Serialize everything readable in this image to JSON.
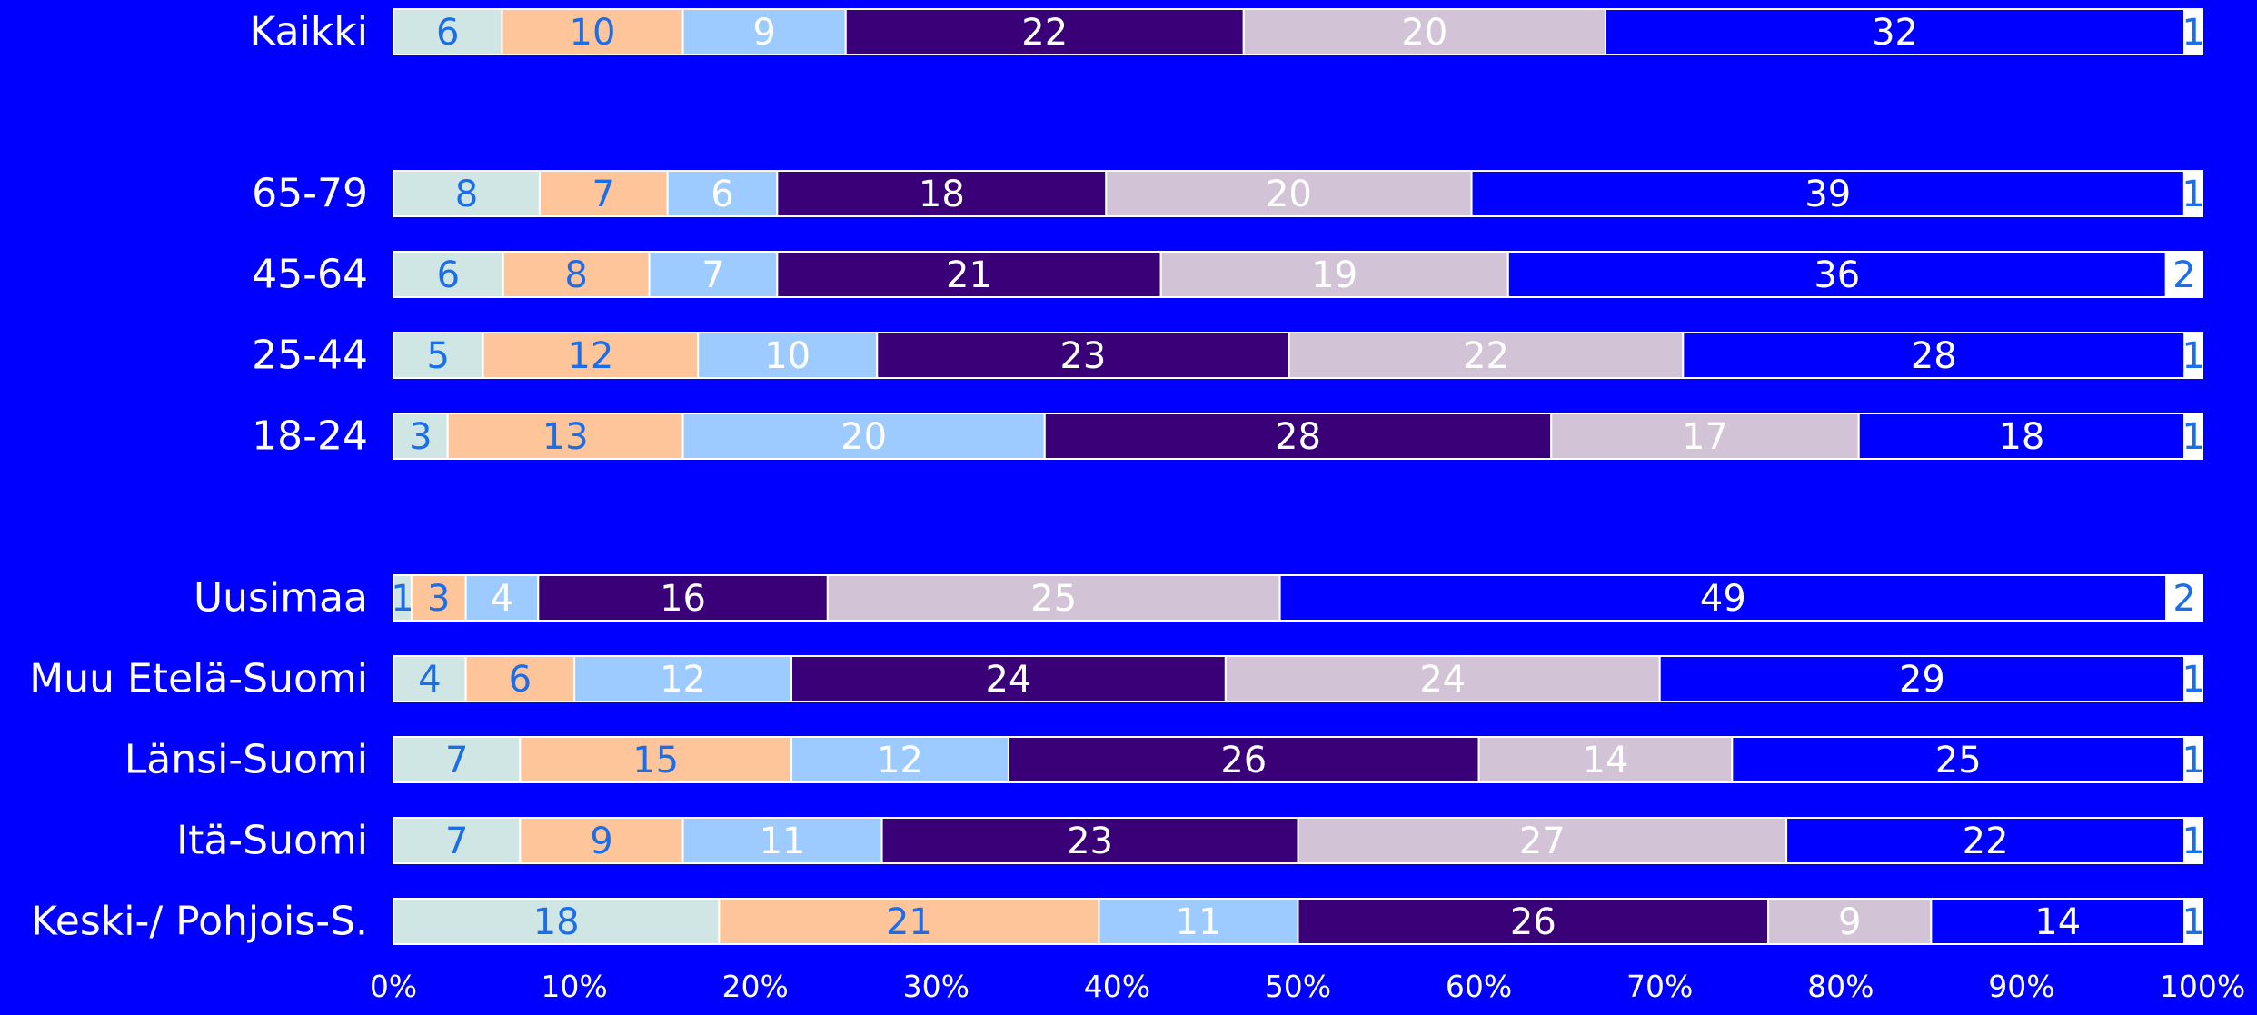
{
  "chart_data": {
    "type": "bar",
    "orientation": "horizontal",
    "stacked": true,
    "percent_stacked": true,
    "categories": [
      "Kaikki",
      "65-79",
      "45-64",
      "25-44",
      "18-24",
      "Uusimaa",
      "Muu Etelä-Suomi",
      "Länsi-Suomi",
      "Itä-Suomi",
      "Keski-/ Pohjois-S."
    ],
    "series": [
      {
        "values": [
          6,
          8,
          6,
          5,
          3,
          1,
          4,
          7,
          7,
          18
        ],
        "color": "#cfe6e4",
        "label_color": "#1c6ee8"
      },
      {
        "values": [
          10,
          7,
          8,
          12,
          13,
          3,
          6,
          15,
          9,
          21
        ],
        "color": "#ffc59a",
        "label_color": "#1c6ee8"
      },
      {
        "values": [
          9,
          6,
          7,
          10,
          20,
          4,
          12,
          12,
          11,
          11
        ],
        "color": "#9ecbff",
        "label_color": "#ffffff"
      },
      {
        "values": [
          22,
          18,
          21,
          23,
          28,
          16,
          24,
          26,
          23,
          26
        ],
        "color": "#3a0078",
        "label_color": "#ffffff"
      },
      {
        "values": [
          20,
          20,
          19,
          22,
          17,
          25,
          24,
          14,
          27,
          9
        ],
        "color": "#d3c3d6",
        "label_color": "#ffffff"
      },
      {
        "values": [
          32,
          39,
          36,
          28,
          18,
          49,
          29,
          25,
          22,
          14
        ],
        "color": "#0000ff",
        "label_color": "#ffffff"
      },
      {
        "values": [
          1,
          1,
          2,
          1,
          1,
          2,
          1,
          1,
          1,
          1
        ],
        "color": "#ffffff",
        "label_color": "#1c6ee8"
      }
    ],
    "xlim": [
      0,
      100
    ],
    "x_ticks": [
      "0%",
      "10%",
      "20%",
      "30%",
      "40%",
      "50%",
      "60%",
      "70%",
      "80%",
      "90%",
      "100%"
    ],
    "grid": false,
    "legend": "none",
    "background": "#0000ff",
    "category_label_color": "#ffffff",
    "tick_label_color": "#ffffff"
  }
}
